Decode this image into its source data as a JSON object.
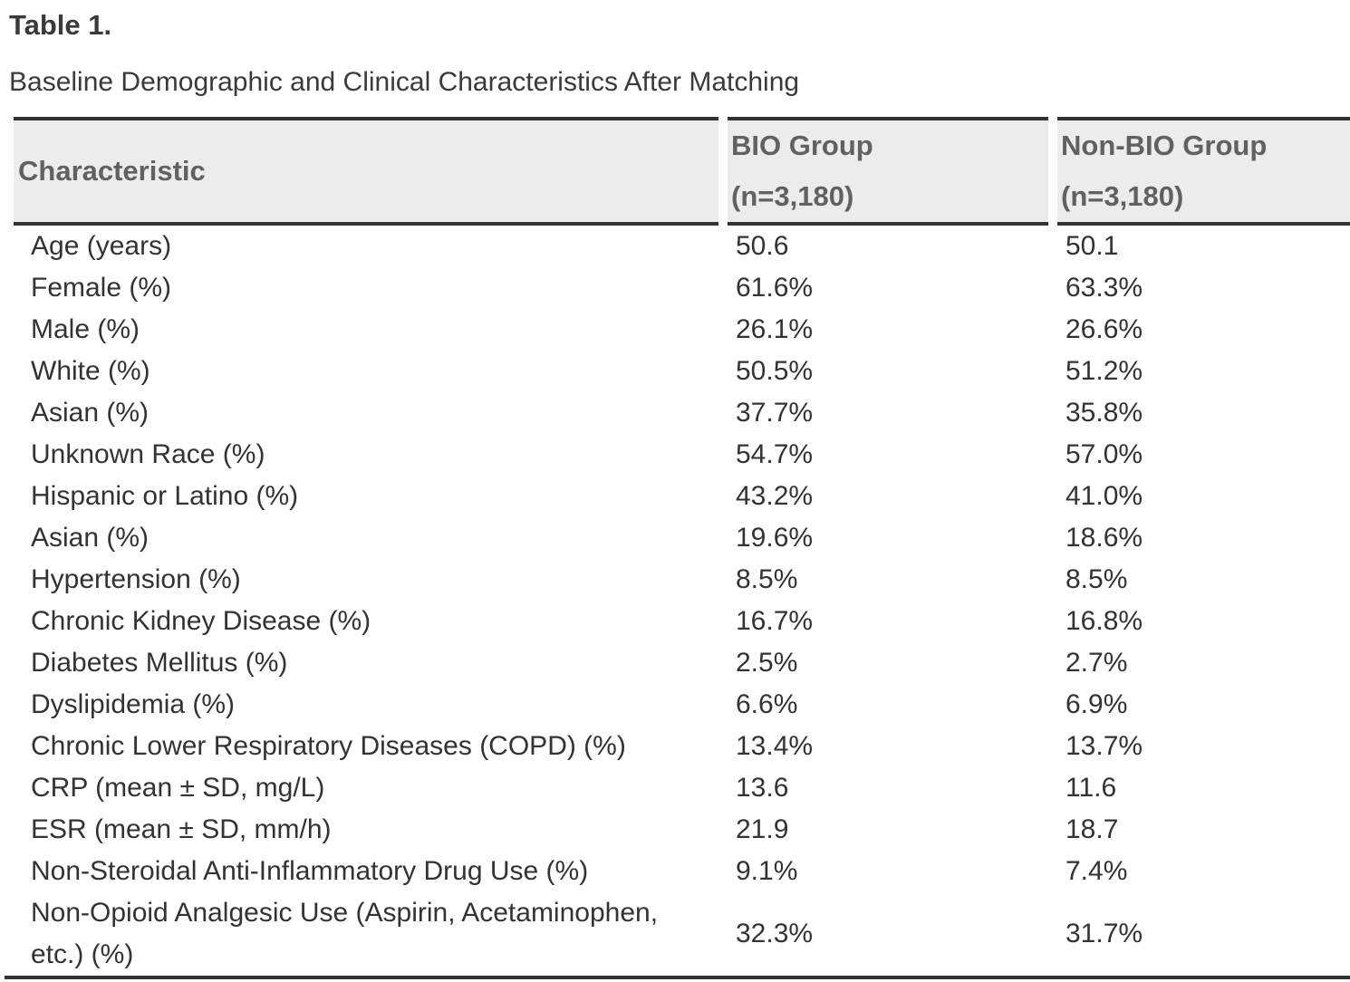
{
  "page": {
    "table_number": "Table 1.",
    "caption": "Baseline Demographic and Clinical Characteristics After Matching"
  },
  "colors": {
    "border": "#333333",
    "header_bg": "#ececec",
    "header_text": "#616161",
    "body_text": "#333333",
    "page_bg": "#ffffff"
  },
  "table": {
    "columns": [
      {
        "label": "Characteristic",
        "sub": ""
      },
      {
        "label": "BIO Group",
        "sub": "(n=3,180)"
      },
      {
        "label": "Non-BIO Group",
        "sub": "(n=3,180)"
      }
    ],
    "rows": [
      {
        "label": "Age (years)",
        "bio": "50.6",
        "nonbio": "50.1"
      },
      {
        "label": "Female (%)",
        "bio": "61.6%",
        "nonbio": "63.3%"
      },
      {
        "label": "Male (%)",
        "bio": "26.1%",
        "nonbio": "26.6%"
      },
      {
        "label": "White (%)",
        "bio": "50.5%",
        "nonbio": "51.2%"
      },
      {
        "label": "Asian (%)",
        "bio": "37.7%",
        "nonbio": "35.8%"
      },
      {
        "label": "Unknown Race (%)",
        "bio": "54.7%",
        "nonbio": "57.0%"
      },
      {
        "label": "Hispanic or Latino (%)",
        "bio": "43.2%",
        "nonbio": "41.0%"
      },
      {
        "label": "Asian (%)",
        "bio": "19.6%",
        "nonbio": "18.6%"
      },
      {
        "label": "Hypertension (%)",
        "bio": "8.5%",
        "nonbio": "8.5%"
      },
      {
        "label": "Chronic Kidney Disease (%)",
        "bio": "16.7%",
        "nonbio": "16.8%"
      },
      {
        "label": "Diabetes Mellitus (%)",
        "bio": "2.5%",
        "nonbio": "2.7%"
      },
      {
        "label": "Dyslipidemia (%)",
        "bio": "6.6%",
        "nonbio": "6.9%"
      },
      {
        "label": "Chronic Lower Respiratory Diseases (COPD) (%)",
        "bio": "13.4%",
        "nonbio": "13.7%"
      },
      {
        "label": "CRP (mean ± SD, mg/L)",
        "bio": "13.6",
        "nonbio": "11.6"
      },
      {
        "label": "ESR (mean ± SD, mm/h)",
        "bio": "21.9",
        "nonbio": "18.7"
      },
      {
        "label": "Non-Steroidal Anti-Inflammatory Drug Use (%)",
        "bio": "9.1%",
        "nonbio": "7.4%"
      },
      {
        "label": "Non-Opioid Analgesic Use (Aspirin, Acetaminophen, etc.) (%)",
        "bio": "32.3%",
        "nonbio": "31.7%"
      }
    ]
  }
}
